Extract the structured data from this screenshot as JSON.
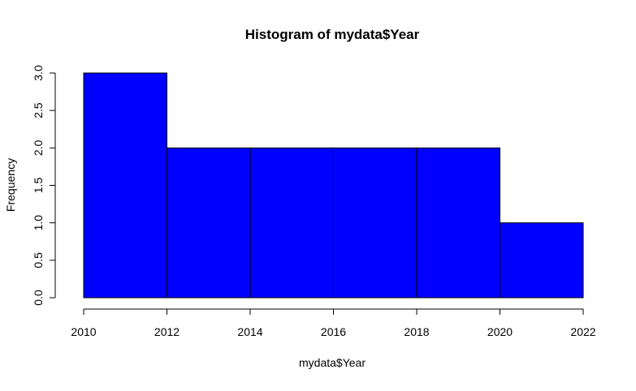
{
  "chart_data": {
    "type": "bar",
    "subtype": "histogram",
    "title": "Histogram of mydata$Year",
    "xlabel": "mydata$Year",
    "ylabel": "Frequency",
    "bins": [
      {
        "start": 2010,
        "end": 2012,
        "count": 3
      },
      {
        "start": 2012,
        "end": 2014,
        "count": 2
      },
      {
        "start": 2014,
        "end": 2016,
        "count": 2
      },
      {
        "start": 2016,
        "end": 2018,
        "count": 2
      },
      {
        "start": 2018,
        "end": 2020,
        "count": 2
      },
      {
        "start": 2020,
        "end": 2022,
        "count": 1
      }
    ],
    "xlim": [
      2010,
      2022
    ],
    "ylim": [
      0,
      3
    ],
    "x_ticks": [
      2010,
      2012,
      2014,
      2016,
      2018,
      2020,
      2022
    ],
    "x_tick_labels": [
      "2010",
      "2012",
      "2014",
      "2016",
      "2018",
      "2020",
      "2022"
    ],
    "y_ticks": [
      0,
      0.5,
      1,
      1.5,
      2,
      2.5,
      3
    ],
    "y_tick_labels": [
      "0.0",
      "0.5",
      "1.0",
      "1.5",
      "2.0",
      "2.5",
      "3.0"
    ],
    "bar_fill_color": "#0000ff",
    "bar_border_color": "#000000",
    "grid": false,
    "legend": "none"
  }
}
